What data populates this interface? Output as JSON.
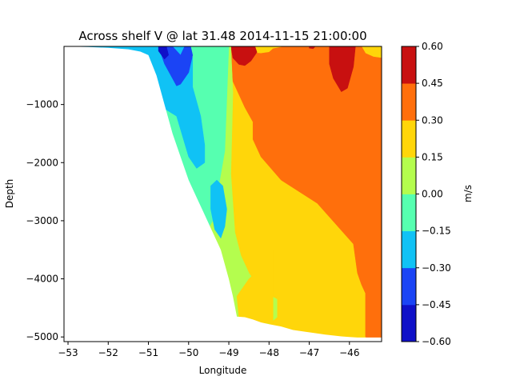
{
  "chart_data": {
    "type": "contourf",
    "title": "Across shelf V @ lat 31.48 2014-11-15 21:00:00",
    "xlabel": "Longitude",
    "ylabel": "Depth",
    "colorbar_label": "m/s",
    "xlim": [
      -53.1,
      -45.2
    ],
    "ylim": [
      -5080,
      0
    ],
    "xticks": [
      -53,
      -52,
      -51,
      -50,
      -49,
      -48,
      -47,
      -46
    ],
    "yticks": [
      -5000,
      -4000,
      -3000,
      -2000,
      -1000
    ],
    "levels": [
      -0.6,
      -0.45,
      -0.3,
      -0.15,
      0.0,
      0.15,
      0.3,
      0.45,
      0.6
    ],
    "level_labels": [
      "-0.60",
      "-0.45",
      "-0.30",
      "-0.15",
      "0.00",
      "0.15",
      "0.30",
      "0.45",
      "0.60"
    ],
    "colors": [
      "#0f10c8",
      "#1b44f5",
      "#10c2f5",
      "#56ffb0",
      "#b4fd4e",
      "#ffd60a",
      "#ff6f0c",
      "#c81010"
    ],
    "bathymetry": {
      "lon": [
        -53.1,
        -52.8,
        -52.5,
        -52.0,
        -51.5,
        -51.2,
        -51.0,
        -50.8,
        -50.6,
        -50.4,
        -50.2,
        -50.0,
        -49.8,
        -49.6,
        -49.4,
        -49.2,
        -49.0,
        -48.9,
        -48.8,
        -48.6,
        -48.4,
        -48.2,
        -48.0,
        -47.7,
        -47.4,
        -47.0,
        -46.6,
        -46.2,
        -46.0,
        -45.8,
        -45.6,
        -45.4,
        -45.2
      ],
      "depth": [
        0,
        -5,
        -10,
        -25,
        -50,
        -90,
        -150,
        -500,
        -1000,
        -1500,
        -1900,
        -2300,
        -2600,
        -2900,
        -3200,
        -3500,
        -4000,
        -4300,
        -4650,
        -4660,
        -4700,
        -4750,
        -4780,
        -4820,
        -4880,
        -4920,
        -4960,
        -4990,
        -5000,
        -5010,
        -5010,
        -5010,
        -5010
      ]
    },
    "regions": [
      {
        "band": 0.15,
        "xs": [
          -53.1,
          -45.2,
          -45.2,
          -53.1
        ],
        "ys": [
          0,
          0,
          -5080,
          -5080
        ]
      },
      {
        "band": 0.3,
        "xs": [
          -48.95,
          -48.7,
          -48.6,
          -48.2,
          -48.0,
          -47.9,
          -47.6,
          -47.3,
          -46.9,
          -46.6,
          -46.4,
          -46.1,
          -45.7,
          -45.6,
          -45.4,
          -45.2,
          -45.2,
          -45.4,
          -45.6,
          -45.6,
          -45.7,
          -45.8,
          -45.9,
          -46.8,
          -47.7,
          -48.2,
          -48.4,
          -48.4,
          -48.6,
          -48.7,
          -48.9,
          -48.95
        ],
        "ys": [
          0,
          0,
          -100,
          -120,
          -100,
          -40,
          0,
          0,
          0,
          0,
          0,
          0,
          0,
          -120,
          -180,
          -200,
          -5080,
          -5080,
          -5000,
          -4250,
          -4100,
          -3900,
          -3400,
          -2700,
          -2300,
          -1900,
          -1600,
          -1300,
          -1050,
          -900,
          -600,
          0
        ]
      },
      {
        "band": 0.45,
        "xs": [
          -48.95,
          -48.85,
          -48.7,
          -48.5,
          -48.35,
          -48.3,
          -48.45,
          -48.6,
          -48.75,
          -48.9,
          -48.95
        ],
        "ys": [
          0,
          0,
          0,
          0,
          0,
          -100,
          -250,
          -330,
          -310,
          -200,
          0
        ]
      },
      {
        "band": 0.45,
        "xs": [
          -46.5,
          -46.1,
          -45.85,
          -45.9,
          -46.05,
          -46.2,
          -46.4,
          -46.5,
          -46.5
        ],
        "ys": [
          0,
          0,
          0,
          -350,
          -720,
          -780,
          -550,
          -300,
          0
        ]
      },
      {
        "band": 0.6,
        "xs": [
          -48.65,
          -48.5,
          -48.55,
          -48.65
        ],
        "ys": [
          0,
          0,
          -90,
          -60
        ]
      },
      {
        "band": 0.6,
        "xs": [
          -47.0,
          -46.85,
          -46.9,
          -47.0
        ],
        "ys": [
          0,
          0,
          -40,
          -30
        ]
      },
      {
        "band": 0.6,
        "xs": [
          -46.1,
          -45.95,
          -46.0,
          -46.1
        ],
        "ys": [
          0,
          0,
          -40,
          -40
        ]
      },
      {
        "band": 0.0,
        "xs": [
          -53.1,
          -50.8,
          -50.4,
          -50.0,
          -49.7,
          -49.5,
          -49.3,
          -49.1,
          -48.95,
          -48.9,
          -48.95,
          -48.85,
          -48.7,
          -48.5,
          -48.2,
          -47.8,
          -47.8,
          -48.0,
          -48.4,
          -48.8,
          -49.0
        ],
        "ys": [
          0,
          0,
          0,
          0,
          0,
          0,
          0,
          0,
          0,
          -800,
          -2200,
          -3200,
          -3600,
          -3900,
          -4200,
          -4350,
          -4660,
          -4780,
          -4700,
          -4650,
          -4000
        ]
      },
      {
        "band": 0.15,
        "xs": [
          -48.8,
          -48.5,
          -48.2,
          -47.9,
          -47.9,
          -48.2,
          -48.5,
          -48.75
        ],
        "ys": [
          -4300,
          -4000,
          -3800,
          -3500,
          -4780,
          -4750,
          -4700,
          -4650
        ]
      },
      {
        "band": -0.15,
        "xs": [
          -53.1,
          -50.9,
          -50.7,
          -50.4,
          -50.1,
          -49.8,
          -49.4,
          -49.2,
          -49.0,
          -49.1,
          -49.4,
          -49.9,
          -50.3,
          -50.7
        ],
        "ys": [
          0,
          0,
          0,
          0,
          0,
          0,
          0,
          0,
          0,
          -1800,
          -3000,
          -3600,
          -3200,
          -2200
        ]
      },
      {
        "band": -0.3,
        "xs": [
          -53.1,
          -50.9,
          -50.7,
          -50.5,
          -50.0,
          -49.9,
          -49.9,
          -49.7,
          -49.6,
          -49.6,
          -49.8,
          -50.0,
          -50.3
        ],
        "ys": [
          0,
          0,
          0,
          0,
          0,
          -200,
          -700,
          -1200,
          -1700,
          -2000,
          -2100,
          -1900,
          -1200
        ]
      },
      {
        "band": -0.3,
        "xs": [
          -49.45,
          -49.3,
          -49.15,
          -49.05,
          -49.1,
          -49.2,
          -49.35,
          -49.45
        ],
        "ys": [
          -2400,
          -2300,
          -2400,
          -2800,
          -3100,
          -3300,
          -3150,
          -2800
        ]
      },
      {
        "band": -0.45,
        "xs": [
          -50.75,
          -50.55,
          -50.4,
          -50.2,
          -50.1,
          -49.95,
          -49.9,
          -50.0,
          -50.2,
          -50.3,
          -50.6,
          -50.75
        ],
        "ys": [
          0,
          0,
          0,
          -150,
          0,
          0,
          -150,
          -450,
          -650,
          -680,
          -300,
          0
        ]
      },
      {
        "band": -0.6,
        "xs": [
          -50.75,
          -50.55,
          -50.5,
          -50.6,
          -50.75
        ],
        "ys": [
          0,
          0,
          -150,
          -220,
          -80
        ]
      }
    ]
  }
}
